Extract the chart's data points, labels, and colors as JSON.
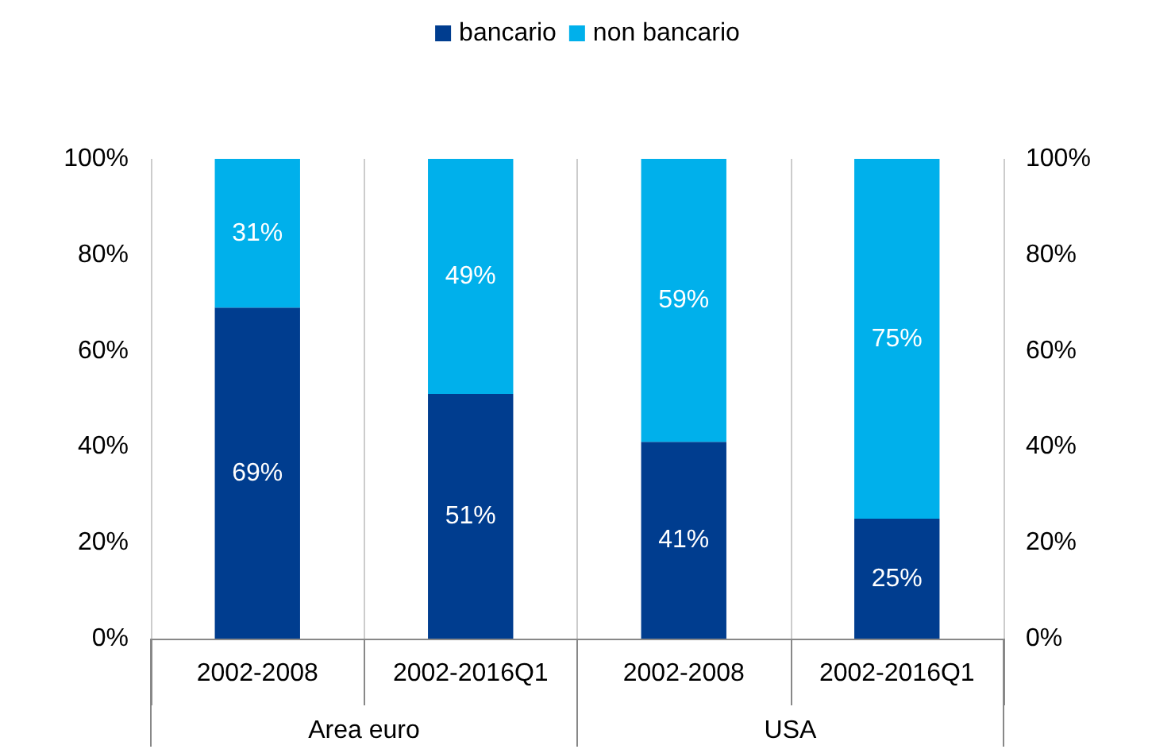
{
  "chart_data": {
    "type": "bar",
    "stacked": true,
    "categories": [
      "2002-2008",
      "2002-2016Q1",
      "2002-2008",
      "2002-2016Q1"
    ],
    "series": [
      {
        "name": "bancario",
        "color": "#003d8f",
        "values": [
          69,
          51,
          41,
          25
        ],
        "value_labels": [
          "69%",
          "51%",
          "41%",
          "25%"
        ]
      },
      {
        "name": "non bancario",
        "color": "#00b0eb",
        "values": [
          31,
          49,
          59,
          75
        ],
        "value_labels": [
          "31%",
          "49%",
          "59%",
          "75%"
        ]
      }
    ],
    "ylim": [
      0,
      100
    ],
    "yticks": [
      {
        "value": 0,
        "label": "0%"
      },
      {
        "value": 20,
        "label": "20%"
      },
      {
        "value": 40,
        "label": "40%"
      },
      {
        "value": 60,
        "label": "60%"
      },
      {
        "value": 80,
        "label": "80%"
      },
      {
        "value": 100,
        "label": "100%"
      }
    ],
    "y2lim": [
      0,
      100
    ],
    "y2ticks": [
      {
        "value": 0,
        "label": "0%"
      },
      {
        "value": 20,
        "label": "20%"
      },
      {
        "value": 40,
        "label": "40%"
      },
      {
        "value": 60,
        "label": "60%"
      },
      {
        "value": 80,
        "label": "80%"
      },
      {
        "value": 100,
        "label": "100%"
      }
    ],
    "annotations": [
      "Area euro",
      "USA"
    ],
    "grid": "x",
    "legend": "top"
  }
}
